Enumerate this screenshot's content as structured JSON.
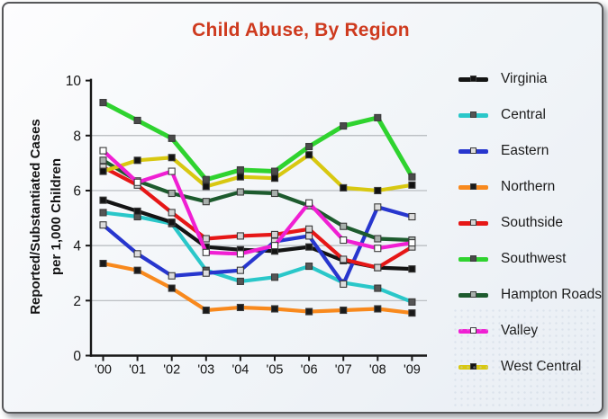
{
  "chart_data": {
    "type": "line",
    "title": "Child Abuse, By Region",
    "title_color": "#CE3A1E",
    "ylabel_line1": "Reported/Substantiated Cases",
    "ylabel_line2": "per 1,000 Children",
    "xlabel": "",
    "x_categories": [
      "'00",
      "'01",
      "'02",
      "'03",
      "'04",
      "'05",
      "'06",
      "'07",
      "'08",
      "'09"
    ],
    "ylim": [
      0,
      10
    ],
    "yticks": [
      0,
      2,
      4,
      6,
      8,
      10
    ],
    "grid": true,
    "gridline_color": "#b5b9bd",
    "axis_color": "#161616",
    "legend_position": "right",
    "series": [
      {
        "name": "Virginia",
        "color": "#141414",
        "marker_fill": "#141414",
        "values": [
          5.65,
          5.25,
          4.85,
          3.95,
          3.85,
          3.8,
          3.95,
          3.45,
          3.2,
          3.15
        ]
      },
      {
        "name": "Central",
        "color": "#2AC7C9",
        "marker_fill": "#555555",
        "values": [
          5.2,
          5.05,
          4.8,
          3.1,
          2.7,
          2.85,
          3.25,
          2.65,
          2.45,
          1.95
        ]
      },
      {
        "name": "Eastern",
        "color": "#2736CE",
        "marker_fill": "#dddddd",
        "values": [
          4.75,
          3.7,
          2.9,
          3.0,
          3.1,
          4.15,
          4.35,
          2.6,
          5.4,
          5.05
        ]
      },
      {
        "name": "Northern",
        "color": "#F8891D",
        "marker_fill": "#1a1a1a",
        "values": [
          3.35,
          3.1,
          2.45,
          1.65,
          1.75,
          1.7,
          1.6,
          1.65,
          1.7,
          1.55
        ]
      },
      {
        "name": "Southside",
        "color": "#E61717",
        "marker_fill": "#d5d5d5",
        "values": [
          6.85,
          6.2,
          5.2,
          4.25,
          4.35,
          4.4,
          4.6,
          3.5,
          3.2,
          3.95
        ]
      },
      {
        "name": "Southwest",
        "color": "#2FD32F",
        "marker_fill": "#4a4a4a",
        "values": [
          9.2,
          8.55,
          7.9,
          6.4,
          6.75,
          6.7,
          7.6,
          8.35,
          8.65,
          6.5
        ]
      },
      {
        "name": "Hampton Roads",
        "color": "#1D5B2E",
        "marker_fill": "#a8b0ac",
        "values": [
          7.1,
          6.35,
          5.9,
          5.6,
          5.95,
          5.9,
          5.45,
          4.7,
          4.25,
          4.2
        ]
      },
      {
        "name": "Valley",
        "color": "#F01FD3",
        "marker_fill": "#ffffff",
        "values": [
          7.45,
          6.3,
          6.7,
          3.75,
          3.7,
          4.0,
          5.55,
          4.2,
          3.9,
          4.1
        ]
      },
      {
        "name": "West Central",
        "color": "#D8C811",
        "marker_fill": "#111111",
        "values": [
          6.7,
          7.1,
          7.2,
          6.15,
          6.5,
          6.45,
          7.3,
          6.1,
          6.0,
          6.2
        ]
      }
    ]
  }
}
